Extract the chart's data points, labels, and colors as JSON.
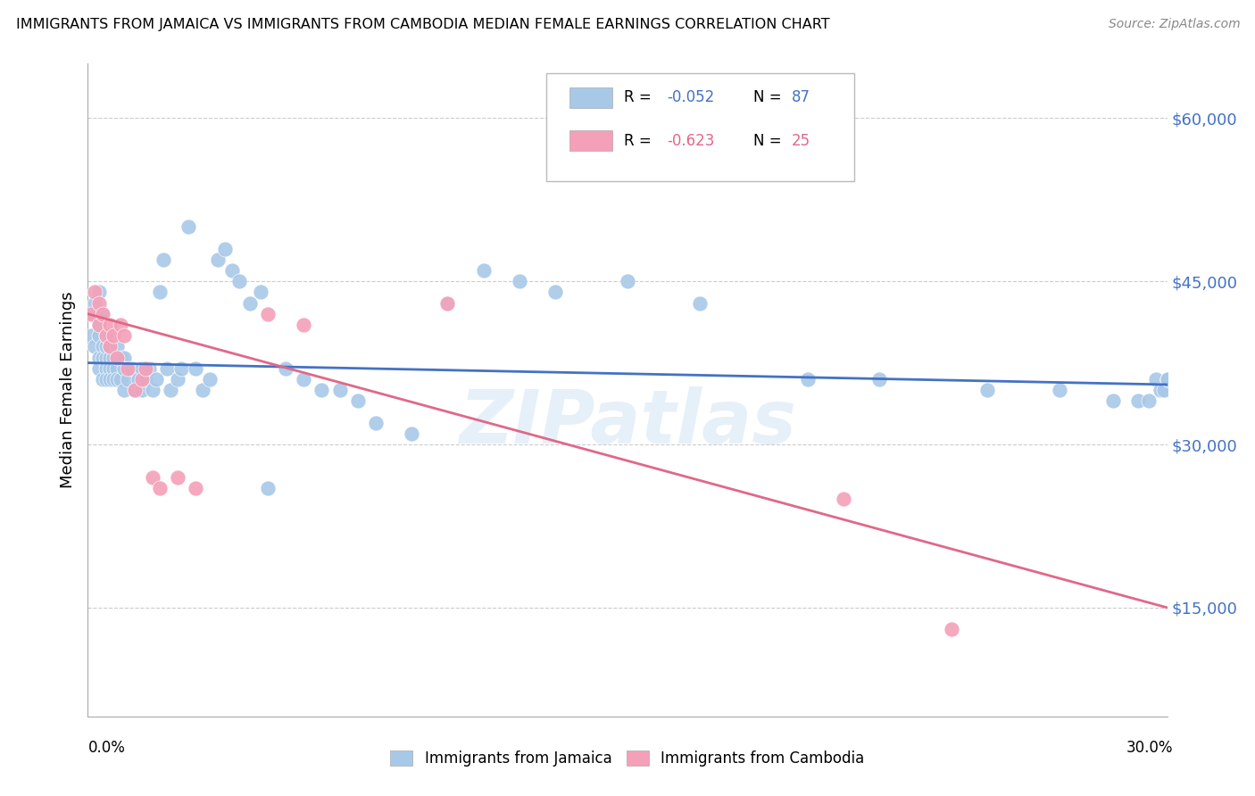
{
  "title": "IMMIGRANTS FROM JAMAICA VS IMMIGRANTS FROM CAMBODIA MEDIAN FEMALE EARNINGS CORRELATION CHART",
  "source": "Source: ZipAtlas.com",
  "ylabel": "Median Female Earnings",
  "xmin": 0.0,
  "xmax": 0.3,
  "ymin": 5000,
  "ymax": 65000,
  "jamaica_color": "#a8c8e8",
  "cambodia_color": "#f4a0b8",
  "jamaica_line_color": "#4472c4",
  "cambodia_line_color": "#e06888",
  "jamaica_legend_label": "Immigrants from Jamaica",
  "cambodia_legend_label": "Immigrants from Cambodia",
  "watermark": "ZIPatlas",
  "jamaica_x": [
    0.001,
    0.002,
    0.002,
    0.002,
    0.003,
    0.003,
    0.003,
    0.003,
    0.003,
    0.004,
    0.004,
    0.004,
    0.004,
    0.005,
    0.005,
    0.005,
    0.005,
    0.005,
    0.006,
    0.006,
    0.006,
    0.006,
    0.006,
    0.007,
    0.007,
    0.007,
    0.008,
    0.008,
    0.008,
    0.009,
    0.009,
    0.01,
    0.01,
    0.01,
    0.011,
    0.012,
    0.013,
    0.014,
    0.015,
    0.015,
    0.016,
    0.017,
    0.018,
    0.019,
    0.02,
    0.021,
    0.022,
    0.023,
    0.025,
    0.026,
    0.028,
    0.03,
    0.032,
    0.034,
    0.036,
    0.038,
    0.04,
    0.042,
    0.045,
    0.048,
    0.05,
    0.055,
    0.06,
    0.065,
    0.07,
    0.075,
    0.08,
    0.09,
    0.1,
    0.11,
    0.12,
    0.13,
    0.15,
    0.17,
    0.2,
    0.22,
    0.25,
    0.27,
    0.285,
    0.292,
    0.295,
    0.297,
    0.298,
    0.299,
    0.3,
    0.3,
    0.3
  ],
  "jamaica_y": [
    40000,
    42000,
    39000,
    43000,
    41000,
    38000,
    44000,
    40000,
    37000,
    39000,
    42000,
    38000,
    36000,
    40000,
    38000,
    37000,
    36000,
    39000,
    40000,
    38000,
    37000,
    36000,
    39000,
    38000,
    37000,
    36000,
    39000,
    37000,
    36000,
    38000,
    36000,
    38000,
    37000,
    35000,
    36000,
    37000,
    35000,
    36000,
    37000,
    35000,
    36000,
    37000,
    35000,
    36000,
    44000,
    47000,
    37000,
    35000,
    36000,
    37000,
    50000,
    37000,
    35000,
    36000,
    47000,
    48000,
    46000,
    45000,
    43000,
    44000,
    26000,
    37000,
    36000,
    35000,
    35000,
    34000,
    32000,
    31000,
    43000,
    46000,
    45000,
    44000,
    45000,
    43000,
    36000,
    36000,
    35000,
    35000,
    34000,
    34000,
    34000,
    36000,
    35000,
    35000,
    36000,
    36000,
    36000
  ],
  "cambodia_x": [
    0.001,
    0.002,
    0.003,
    0.003,
    0.004,
    0.005,
    0.006,
    0.006,
    0.007,
    0.008,
    0.009,
    0.01,
    0.011,
    0.013,
    0.015,
    0.016,
    0.018,
    0.02,
    0.025,
    0.03,
    0.05,
    0.06,
    0.1,
    0.21,
    0.24
  ],
  "cambodia_y": [
    42000,
    44000,
    41000,
    43000,
    42000,
    40000,
    39000,
    41000,
    40000,
    38000,
    41000,
    40000,
    37000,
    35000,
    36000,
    37000,
    27000,
    26000,
    27000,
    26000,
    42000,
    41000,
    43000,
    25000,
    13000
  ],
  "jamaica_line_x": [
    0.0,
    0.3
  ],
  "jamaica_line_y": [
    37500,
    35500
  ],
  "cambodia_line_x": [
    0.0,
    0.3
  ],
  "cambodia_line_y": [
    42000,
    15000
  ]
}
